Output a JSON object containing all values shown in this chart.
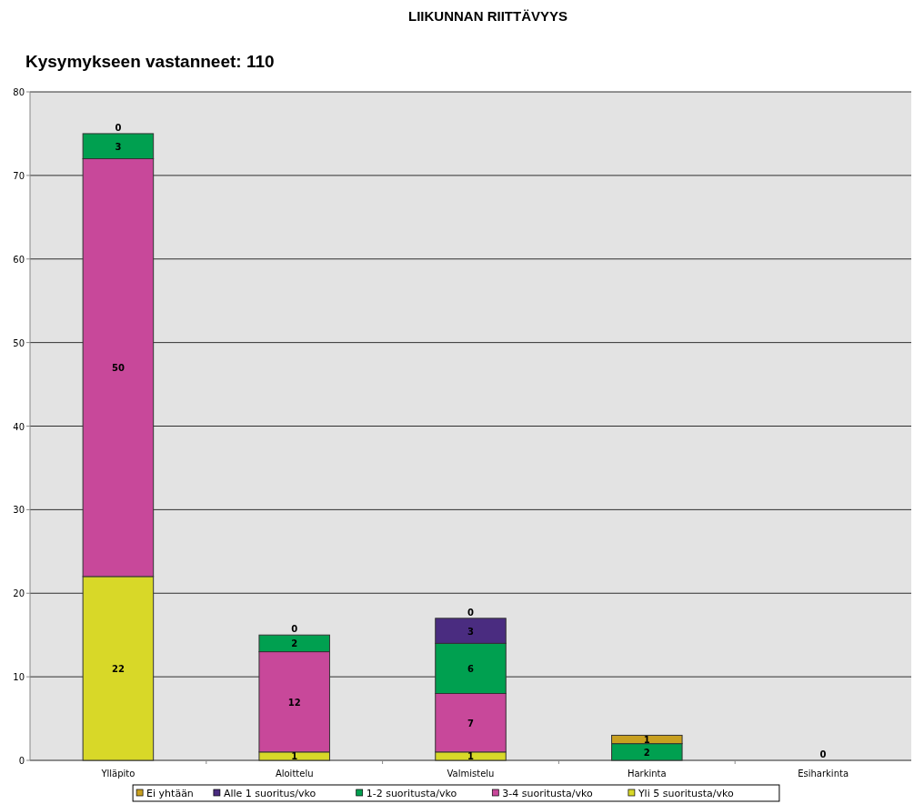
{
  "chart_data": {
    "type": "bar",
    "title": "LIIKUNNAN RIITTÄVYYS",
    "subtitle": "Kysymykseen vastanneet: 110",
    "categories": [
      "Ylläpito",
      "Aloittelu",
      "Valmistelu",
      "Harkinta",
      "Esiharkinta"
    ],
    "stacked": true,
    "series": [
      {
        "name": "Yli 5 suoritusta/vko",
        "color": "#d8d828",
        "values": [
          22,
          1,
          1,
          0,
          0
        ],
        "value_labels": [
          "22",
          "1",
          "1",
          null,
          "0"
        ]
      },
      {
        "name": "3-4 suoritusta/vko",
        "color": "#c8489a",
        "values": [
          50,
          12,
          7,
          0,
          0
        ],
        "value_labels": [
          "50",
          "12",
          "7",
          null,
          null
        ]
      },
      {
        "name": "1-2 suoritusta/vko",
        "color": "#00a050",
        "values": [
          3,
          2,
          6,
          2,
          0
        ],
        "value_labels": [
          "3",
          "2",
          "6",
          "2",
          null
        ]
      },
      {
        "name": "Alle 1 suoritus/vko",
        "color": "#4a2c80",
        "values": [
          0,
          0,
          3,
          0,
          0
        ],
        "value_labels": [
          null,
          null,
          "3",
          null,
          null
        ]
      },
      {
        "name": "Ei yhtään",
        "color": "#c8a020",
        "values": [
          0,
          0,
          0,
          1,
          0
        ],
        "value_labels": [
          "0",
          "0",
          "0",
          "1",
          null
        ]
      }
    ],
    "ylim": [
      0,
      80
    ],
    "yticks": [
      0,
      10,
      20,
      30,
      40,
      50,
      60,
      70,
      80
    ],
    "grid": "y",
    "legend": "bottom"
  }
}
